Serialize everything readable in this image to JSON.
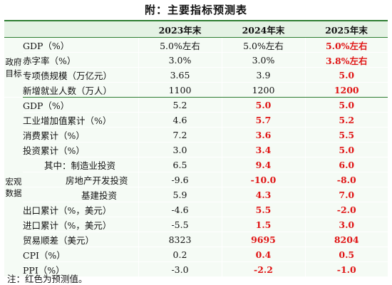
{
  "title": "附：主要指标预测表",
  "header": {
    "y2023": "2023年末",
    "y2024": "2024年末",
    "y2025": "2025年末"
  },
  "groups": {
    "policy": "政府目标",
    "macro": "宏观数据"
  },
  "rows": [
    {
      "name": "GDP（%）",
      "v2023": "5.0%左右",
      "v2024": "5.0%左右",
      "v2025": "5.0%左右"
    },
    {
      "name": "赤字率（%）",
      "v2023": "3.0%",
      "v2024": "3.0%",
      "v2025": "3.8%左右"
    },
    {
      "name": "专项债规模（万亿元）",
      "v2023": "3.65",
      "v2024": "3.9",
      "v2025": "5.0"
    },
    {
      "name": "新增就业人数（万人）",
      "v2023": "1100",
      "v2024": "1200",
      "v2025": "1200"
    },
    {
      "name": "GDP（%）",
      "v2023": "5.2",
      "v2024": "5.0",
      "v2025": "5.0"
    },
    {
      "name": "工业增加值累计（%）",
      "v2023": "4.6",
      "v2024": "5.7",
      "v2025": "5.2"
    },
    {
      "name": "消费累计（%）",
      "v2023": "7.2",
      "v2024": "3.6",
      "v2025": "5.5"
    },
    {
      "name": "投资累计（%）",
      "v2023": "3.0",
      "v2024": "3.4",
      "v2025": "5.0"
    },
    {
      "name": "其中：制造业投资",
      "v2023": "6.5",
      "v2024": "9.4",
      "v2025": "6.0"
    },
    {
      "name": "房地产开发投资",
      "v2023": "-9.6",
      "v2024": "-10.0",
      "v2025": "-8.0"
    },
    {
      "name": "基建投资",
      "v2023": "5.9",
      "v2024": "4.3",
      "v2025": "7.0"
    },
    {
      "name": "出口累计（%，美元）",
      "v2023": "-4.6",
      "v2024": "5.5",
      "v2025": "-2.0"
    },
    {
      "name": "进口累计（%，美元）",
      "v2023": "-5.5",
      "v2024": "1.5",
      "v2025": "3.0"
    },
    {
      "name": "贸易顺差（美元）",
      "v2023": "8323",
      "v2024": "9695",
      "v2025": "8204"
    },
    {
      "name": "CPI（%）",
      "v2023": "0.2",
      "v2024": "0.4",
      "v2025": "0.5"
    },
    {
      "name": "PPI（%）",
      "v2023": "-3.0",
      "v2024": "-2.2",
      "v2025": "-1.0"
    }
  ],
  "note": "注：红色为预测值。",
  "colors": {
    "forecast_text": "#e01515",
    "rule_green": "#2e7d32",
    "header_bg": "#e4f2e4",
    "body_bg": "#f5fbf5"
  }
}
